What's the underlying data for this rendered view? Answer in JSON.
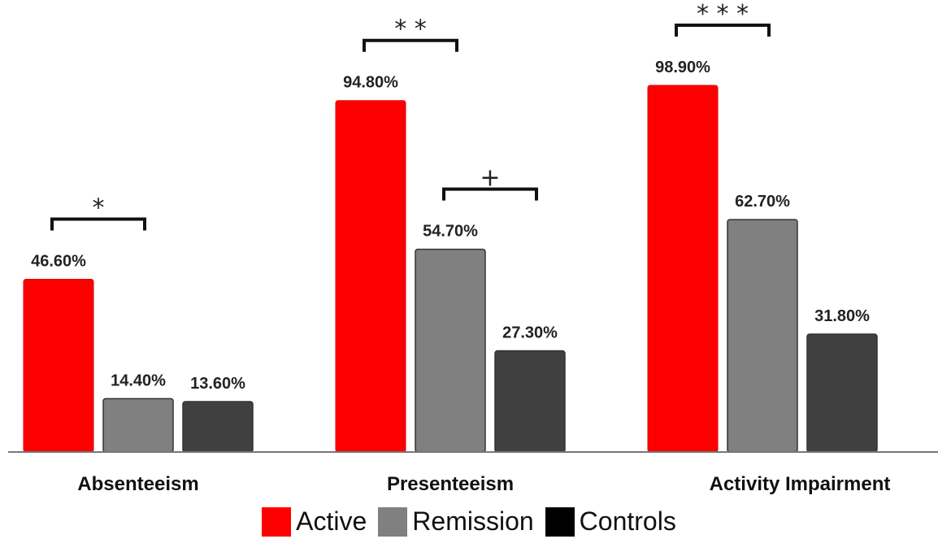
{
  "chart_data": {
    "type": "bar",
    "title": "",
    "xlabel": "",
    "ylabel": "",
    "ylim": [
      0,
      100
    ],
    "grid": false,
    "legend_position": "bottom-center",
    "categories": [
      "Absenteeism",
      "Presenteeism",
      "Activity Impairment"
    ],
    "series": [
      {
        "name": "Active",
        "color": "#ff0000",
        "values": [
          46.6,
          94.8,
          98.9
        ],
        "labels": [
          "46.60%",
          "94.80%",
          "98.90%"
        ]
      },
      {
        "name": "Remission",
        "color": "#808080",
        "values": [
          14.4,
          54.7,
          62.7
        ],
        "labels": [
          "14.40%",
          "54.70%",
          "62.70%"
        ]
      },
      {
        "name": "Controls",
        "color": "#404040",
        "values": [
          13.6,
          27.3,
          31.8
        ],
        "labels": [
          "13.60%",
          "27.30%",
          "31.80%"
        ]
      }
    ],
    "legend_swatch_colors": [
      "#ff0000",
      "#808080",
      "#000000"
    ],
    "significance": [
      {
        "category": 0,
        "from_series": 0,
        "to_series": 1,
        "symbol": "*"
      },
      {
        "category": 1,
        "from_series": 0,
        "to_series": 1,
        "symbol": "* *"
      },
      {
        "category": 1,
        "from_series": 1,
        "to_series": 2,
        "symbol": "+"
      },
      {
        "category": 2,
        "from_series": 0,
        "to_series": 1,
        "symbol": "* * *"
      }
    ]
  }
}
